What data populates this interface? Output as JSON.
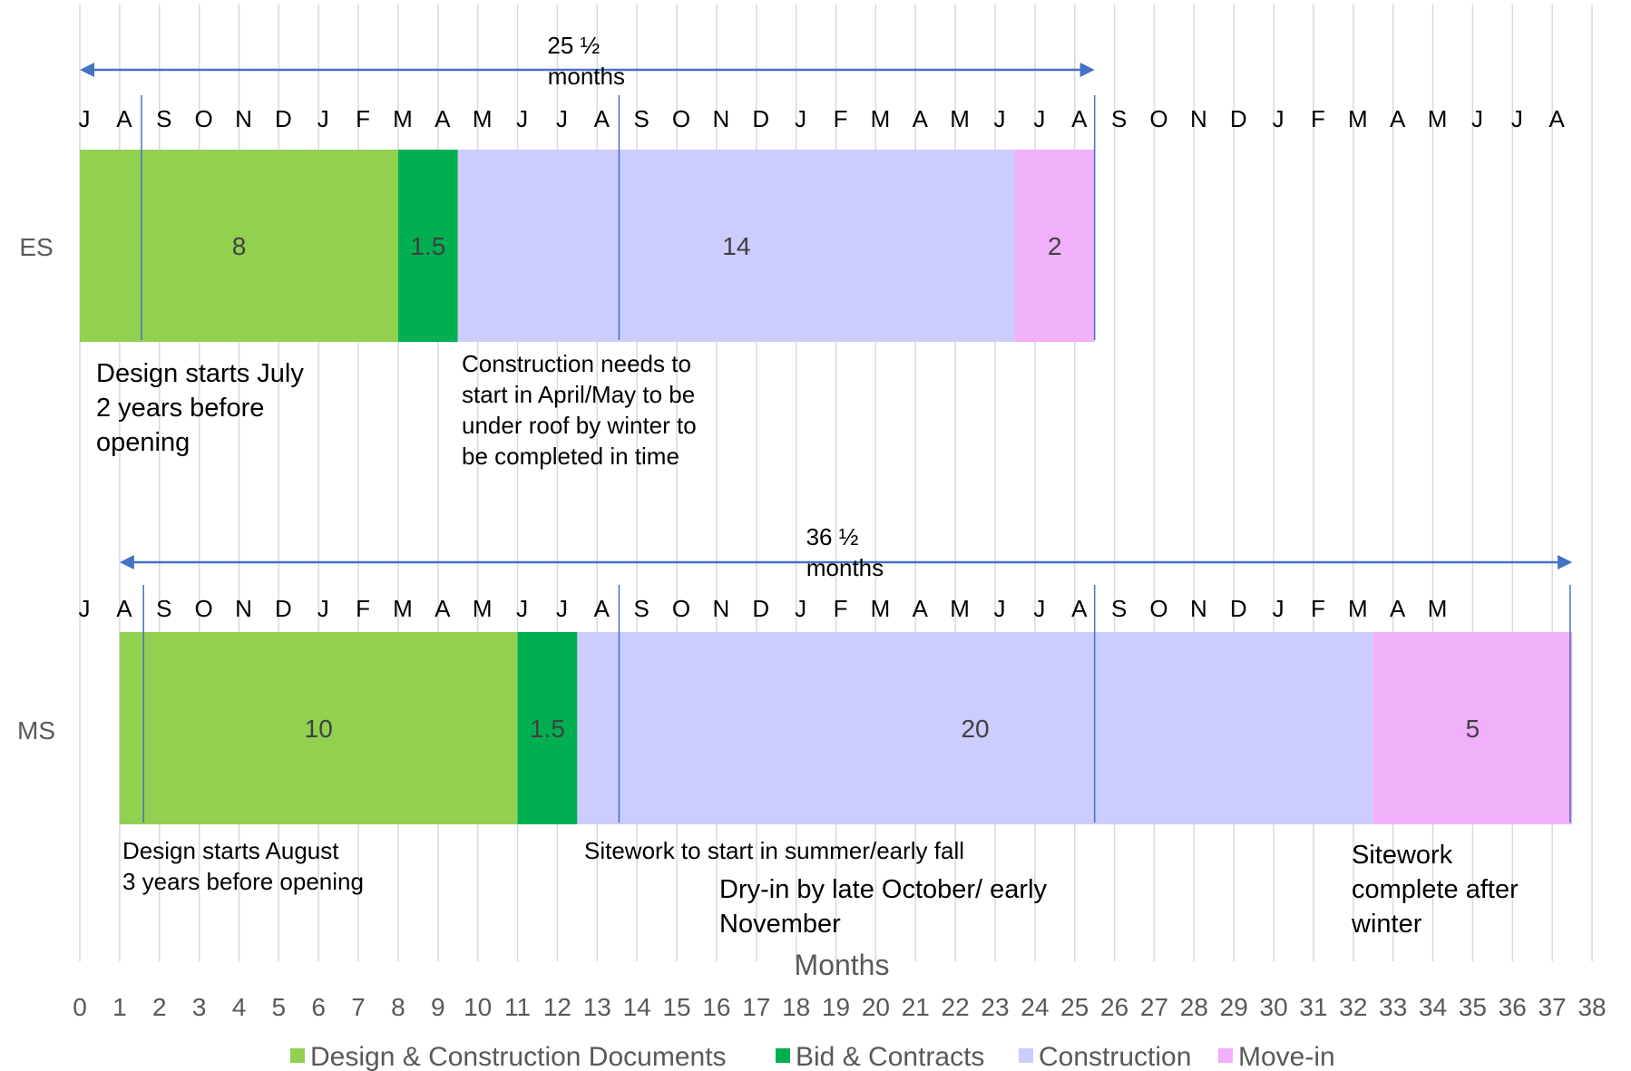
{
  "chart_data": {
    "type": "bar",
    "orientation": "horizontal",
    "stacked": true,
    "xlabel": "Months",
    "xlim": [
      0,
      38
    ],
    "x_ticks": [
      "0",
      "1",
      "2",
      "3",
      "4",
      "5",
      "6",
      "7",
      "8",
      "9",
      "10",
      "11",
      "12",
      "13",
      "14",
      "15",
      "16",
      "17",
      "18",
      "19",
      "20",
      "21",
      "22",
      "23",
      "24",
      "25",
      "26",
      "27",
      "28",
      "29",
      "30",
      "31",
      "32",
      "33",
      "34",
      "35",
      "36",
      "37",
      "38"
    ],
    "grid": true,
    "legend_position": "bottom",
    "categories": [
      "ES",
      "MS"
    ],
    "series": [
      {
        "name": "Design & Construction Documents",
        "color": "#92d050",
        "starts": [
          0,
          1
        ],
        "values": [
          8,
          10
        ]
      },
      {
        "name": "Bid & Contracts",
        "color": "#00b050",
        "starts": [
          8,
          11
        ],
        "values": [
          1.5,
          1.5
        ]
      },
      {
        "name": "Construction",
        "color": "#ccccff",
        "starts": [
          9.5,
          12.5
        ],
        "values": [
          14,
          20
        ]
      },
      {
        "name": "Move-in",
        "color": "#f0b0fa",
        "starts": [
          23.5,
          32.5
        ],
        "values": [
          2,
          5
        ]
      }
    ],
    "rows": [
      {
        "label": "ES",
        "month_letters": [
          "J",
          "A",
          "S",
          "O",
          "N",
          "D",
          "J",
          "F",
          "M",
          "A",
          "M",
          "J",
          "J",
          "A",
          "S",
          "O",
          "N",
          "D",
          "J",
          "F",
          "M",
          "A",
          "M",
          "J",
          "J",
          "A",
          "S",
          "O",
          "N",
          "D",
          "J",
          "F",
          "M",
          "A",
          "M",
          "J",
          "J",
          "A"
        ],
        "months_start": 0,
        "span": {
          "from": 0,
          "to": 25.5,
          "label_line1": "25 ½",
          "label_line2": "months"
        },
        "markers": [
          1.55,
          13.55,
          25.5
        ],
        "segment_labels": [
          "8",
          "1.5",
          "14",
          "2"
        ]
      },
      {
        "label": "MS",
        "month_letters": [
          "J",
          "A",
          "S",
          "O",
          "N",
          "D",
          "J",
          "F",
          "M",
          "A",
          "M",
          "J",
          "J",
          "A",
          "S",
          "O",
          "N",
          "D",
          "J",
          "F",
          "M",
          "A",
          "M",
          "J",
          "J",
          "A",
          "S",
          "O",
          "N",
          "D",
          "J",
          "F",
          "M",
          "A",
          "M"
        ],
        "months_start": 0,
        "span": {
          "from": 1,
          "to": 37.5,
          "label_line1": "36 ½",
          "label_line2": "months"
        },
        "markers": [
          1.6,
          13.55,
          25.5,
          37.45
        ],
        "segment_labels": [
          "10",
          "1.5",
          "20",
          "5"
        ]
      }
    ],
    "annotations": [
      {
        "id": "es-design",
        "lines": [
          "Design starts July",
          "2 years before",
          "opening"
        ]
      },
      {
        "id": "es-construction",
        "lines": [
          "Construction needs to",
          "start in April/May to be",
          "under roof by winter to",
          "be completed in time"
        ]
      },
      {
        "id": "ms-design",
        "lines": [
          "Design starts August",
          "3 years before opening"
        ]
      },
      {
        "id": "ms-sitework-start",
        "lines": [
          "Sitework to start in summer/early fall"
        ]
      },
      {
        "id": "ms-dryin",
        "lines": [
          "Dry-in by late October/ early",
          "November"
        ]
      },
      {
        "id": "ms-sitework-complete",
        "lines": [
          "Sitework",
          "complete after",
          "winter"
        ]
      }
    ],
    "colors": {
      "gridline": "#d9d9d9",
      "arrow": "#4472c4",
      "marker": "#4472c4",
      "text": "#000000",
      "axis_text": "#595959",
      "segment_text": "#404040"
    }
  }
}
